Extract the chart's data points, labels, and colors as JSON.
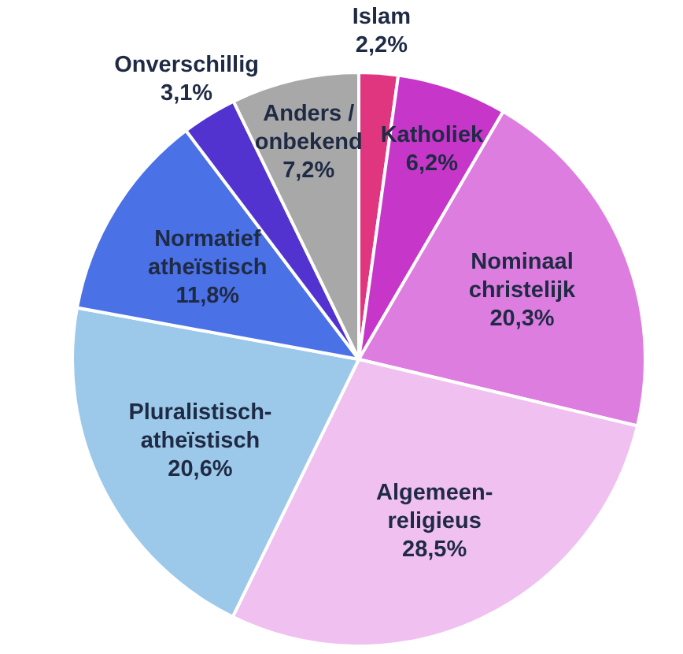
{
  "chart_data": {
    "type": "pie",
    "categories": [
      "Islam",
      "Katholiek",
      "Nominaal christelijk",
      "Algemeen-religieus",
      "Pluralistisch-atheïstisch",
      "Normatief atheïstisch",
      "Onverschillig",
      "Anders / onbekend"
    ],
    "values": [
      2.2,
      6.2,
      20.3,
      28.5,
      20.6,
      11.8,
      3.1,
      7.2
    ],
    "value_labels": [
      "2,2%",
      "6,2%",
      "20,3%",
      "28,5%",
      "20,6%",
      "11,8%",
      "3,1%",
      "7,2%"
    ],
    "colors": [
      "#e0357f",
      "#c637c9",
      "#de7de0",
      "#f0c0f0",
      "#9cc9ea",
      "#4a72e6",
      "#5233d0",
      "#a8a8a8"
    ],
    "legend": false
  }
}
